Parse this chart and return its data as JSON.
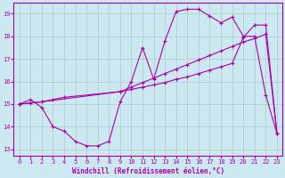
{
  "background_color": "#cce8f0",
  "grid_color": "#aacccc",
  "line_color": "#aa00aa",
  "xlabel": "Windchill (Refroidissement éolien,°C)",
  "xlim": [
    -0.5,
    23.5
  ],
  "ylim": [
    12.7,
    19.5
  ],
  "yticks": [
    13,
    14,
    15,
    16,
    17,
    18,
    19
  ],
  "xticks": [
    0,
    1,
    2,
    3,
    4,
    5,
    6,
    7,
    8,
    9,
    10,
    11,
    12,
    13,
    14,
    15,
    16,
    17,
    18,
    19,
    20,
    21,
    22,
    23
  ],
  "line1_x": [
    0,
    1,
    2,
    3,
    4,
    5,
    6,
    7,
    8,
    9,
    10,
    11,
    12,
    13,
    14,
    15,
    16,
    17,
    18,
    19,
    20,
    21,
    22,
    23
  ],
  "line1_y": [
    15.0,
    15.2,
    14.85,
    14.0,
    13.8,
    13.35,
    13.15,
    13.15,
    13.35,
    15.1,
    16.0,
    17.5,
    16.1,
    17.8,
    19.1,
    19.2,
    19.2,
    18.9,
    18.6,
    18.85,
    18.0,
    18.0,
    15.4,
    13.7
  ],
  "line2_x": [
    0,
    2,
    9,
    10,
    11,
    12,
    13,
    14,
    15,
    16,
    17,
    18,
    19,
    20,
    21,
    22,
    23
  ],
  "line2_y": [
    15.0,
    15.1,
    15.55,
    15.75,
    15.95,
    16.15,
    16.35,
    16.55,
    16.75,
    16.95,
    17.15,
    17.35,
    17.55,
    17.75,
    17.9,
    18.1,
    13.7
  ],
  "line3_x": [
    0,
    1,
    2,
    3,
    4,
    9,
    10,
    11,
    12,
    13,
    14,
    15,
    16,
    17,
    18,
    19,
    20,
    21,
    22,
    23
  ],
  "line3_y": [
    15.0,
    15.05,
    15.1,
    15.2,
    15.3,
    15.55,
    15.65,
    15.75,
    15.85,
    15.95,
    16.1,
    16.2,
    16.35,
    16.5,
    16.65,
    16.8,
    17.95,
    18.5,
    18.5,
    13.7
  ]
}
